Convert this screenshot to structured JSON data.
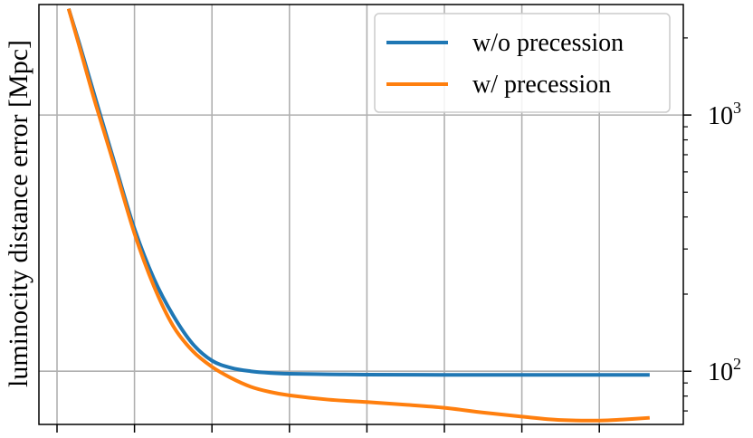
{
  "chart_data": {
    "type": "line",
    "ylabel": "luminocity distance error [Mpc]",
    "yscale": "log",
    "ylim": [
      62,
      2700
    ],
    "y_ticks": [
      {
        "value": 100,
        "base": "10",
        "exp": "2"
      },
      {
        "value": 1000,
        "base": "10",
        "exp": "3"
      }
    ],
    "x_range": [
      0,
      7.7
    ],
    "x_gridlines": [
      0,
      1,
      2,
      3,
      4,
      5,
      6,
      7
    ],
    "grid": true,
    "legend_position": "top-right",
    "series": [
      {
        "name": "w/o precession",
        "color": "#1f77b4",
        "x": [
          0.15,
          0.3,
          0.5,
          0.75,
          1.0,
          1.25,
          1.5,
          1.75,
          2.0,
          2.25,
          2.5,
          2.75,
          3.0,
          3.5,
          4.0,
          5.0,
          6.0,
          7.0,
          7.65
        ],
        "y": [
          2600,
          1850,
          1150,
          640,
          360,
          230,
          165,
          128,
          110,
          103,
          100,
          98.5,
          97.8,
          97.3,
          97.0,
          96.8,
          96.8,
          96.8,
          96.8
        ]
      },
      {
        "name": "w/ precession",
        "color": "#ff7f0e",
        "x": [
          0.15,
          0.3,
          0.5,
          0.75,
          1.0,
          1.25,
          1.5,
          1.75,
          2.0,
          2.25,
          2.5,
          2.75,
          3.0,
          3.5,
          4.0,
          4.5,
          5.0,
          5.5,
          6.0,
          6.5,
          7.0,
          7.3,
          7.65
        ],
        "y": [
          2600,
          1800,
          1100,
          620,
          345,
          215,
          150,
          120,
          104,
          94,
          87,
          83,
          80.5,
          77.5,
          75.8,
          74,
          72,
          69,
          66.5,
          64.5,
          64.2,
          64.8,
          65.8
        ]
      }
    ]
  }
}
